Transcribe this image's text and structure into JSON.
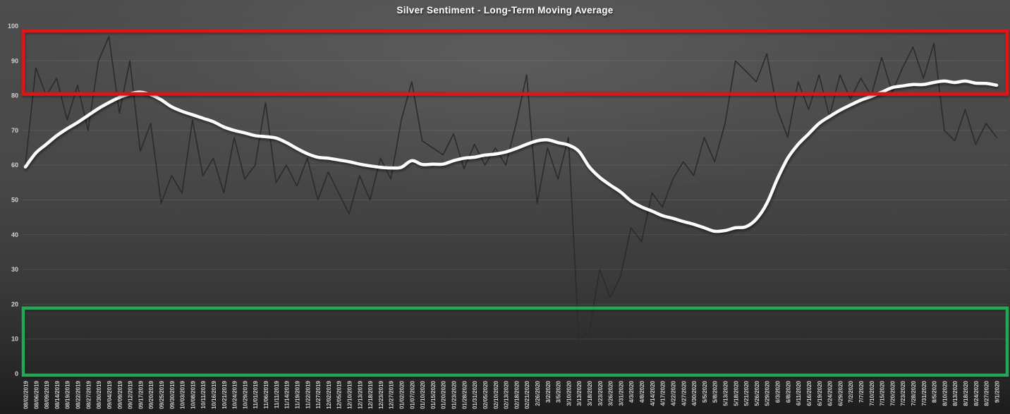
{
  "chart": {
    "title": "Silver Sentiment - Long-Term Moving Average"
  },
  "chart_data": {
    "type": "line",
    "title": "Silver Sentiment - Long-Term Moving Average",
    "xlabel": "",
    "ylabel": "",
    "ylim": [
      0,
      100
    ],
    "y_ticks": [
      0,
      10,
      20,
      30,
      40,
      50,
      60,
      70,
      80,
      90,
      100
    ],
    "grid": true,
    "legend_position": "none",
    "x_labels": [
      "08/02/2019",
      "08/06/2019",
      "08/09/2019",
      "08/14/2019",
      "08/19/2019",
      "08/22/2019",
      "08/27/2019",
      "08/30/2019",
      "09/04/2019",
      "09/09/2019",
      "09/12/2019",
      "09/17/2019",
      "09/20/2019",
      "09/25/2019",
      "09/30/2019",
      "10/03/2019",
      "10/08/2019",
      "10/11/2019",
      "10/16/2019",
      "10/21/2019",
      "10/24/2019",
      "10/29/2019",
      "11/01/2019",
      "11/06/2019",
      "11/11/2019",
      "11/14/2019",
      "11/19/2019",
      "11/22/2019",
      "11/27/2019",
      "12/02/2019",
      "12/05/2019",
      "12/10/2019",
      "12/13/2019",
      "12/18/2019",
      "12/23/2019",
      "12/27/2019",
      "01/02/2020",
      "01/07/2020",
      "01/10/2020",
      "01/15/2020",
      "01/20/2020",
      "01/23/2020",
      "01/28/2020",
      "01/31/2020",
      "02/05/2020",
      "02/10/2020",
      "02/13/2020",
      "02/18/2020",
      "02/21/2020",
      "2/26/2020",
      "3/2/2020",
      "3/5/2020",
      "3/10/2020",
      "3/13/2020",
      "3/18/2020",
      "3/23/2020",
      "3/26/2020",
      "3/31/2020",
      "4/3/2020",
      "4/8/2020",
      "4/14/2020",
      "4/17/2020",
      "4/22/2020",
      "4/27/2020",
      "4/30/2020",
      "5/5/2020",
      "5/8/2020",
      "5/13/2020",
      "5/18/2020",
      "5/21/2020",
      "5/26/2020",
      "5/29/2020",
      "6/3/2020",
      "6/8/2020",
      "6/11/2020",
      "6/16/2020",
      "6/19/2020",
      "6/24/2020",
      "6/29/2020",
      "7/2/2020",
      "7/7/2020",
      "7/10/2020",
      "7/15/2020",
      "7/20/2020",
      "7/23/2020",
      "7/28/2020",
      "7/31/2020",
      "8/5/2020",
      "8/10/2020",
      "8/13/2020",
      "8/18/2020",
      "8/24/2020",
      "8/27/2020",
      "9/1/2020"
    ],
    "series": [
      {
        "name": "daily-sentiment",
        "color": "#2b2b2b",
        "stroke_width": 1.6,
        "smooth": false,
        "shadow": false,
        "values": [
          60,
          88,
          80,
          85,
          73,
          83,
          70,
          90,
          97,
          75,
          90,
          64,
          72,
          49,
          57,
          52,
          73,
          57,
          62,
          52,
          68,
          56,
          60,
          78,
          55,
          60,
          54,
          62,
          50,
          58,
          52,
          46,
          57,
          50,
          62,
          56,
          73,
          84,
          67,
          65,
          63,
          69,
          59,
          66,
          60,
          65,
          60,
          72,
          86,
          49,
          65,
          56,
          68,
          10,
          12,
          30,
          22,
          28,
          42,
          38,
          52,
          48,
          56,
          61,
          57,
          68,
          61,
          72,
          90,
          87,
          84,
          92,
          76,
          68,
          84,
          76,
          86,
          74,
          86,
          79,
          85,
          80,
          91,
          81,
          88,
          94,
          85,
          95,
          70,
          67,
          76,
          66,
          72,
          68
        ]
      },
      {
        "name": "long-term-moving-average",
        "color": "#fdfdfd",
        "stroke_width": 4.5,
        "smooth": true,
        "shadow": true,
        "values": [
          59.5,
          63.5,
          66,
          68.5,
          70.5,
          72.3,
          74.3,
          76.3,
          78,
          79.5,
          80.5,
          81,
          80.3,
          78.8,
          76.8,
          75.5,
          74.5,
          73.5,
          72.5,
          71,
          70,
          69.3,
          68.5,
          68.2,
          67.8,
          66.5,
          64.8,
          63.3,
          62.3,
          62,
          61.5,
          61,
          60.3,
          59.8,
          59.4,
          59.2,
          59.4,
          61.3,
          60.2,
          60.3,
          60.3,
          61.3,
          62,
          62.3,
          62.9,
          63.2,
          63.8,
          64.8,
          66,
          67,
          67.3,
          66.5,
          65.8,
          64,
          59.5,
          56.5,
          54.3,
          52.3,
          49.7,
          48,
          46.8,
          45.5,
          44.7,
          43.8,
          43,
          42,
          41,
          41.2,
          42,
          42.3,
          44.5,
          49,
          56,
          62,
          66,
          69,
          72,
          74,
          75.8,
          77.3,
          78.7,
          79.8,
          81,
          82.3,
          82.8,
          83.2,
          83.2,
          83.8,
          84.2,
          83.8,
          84.2,
          83.6,
          83.5,
          83
        ]
      }
    ],
    "zones": [
      {
        "name": "upper-red-zone",
        "color": "#dc1414",
        "value_from": 80.5,
        "value_to": 98.6,
        "stroke_width": 5
      },
      {
        "name": "lower-green-zone",
        "color": "#22a852",
        "value_from": -0.4,
        "value_to": 18.9,
        "stroke_width": 4.5
      }
    ],
    "colors": {
      "axis_label": "#d2d2d2",
      "x_label": "#cfcfcf",
      "gridline": "rgba(255,255,255,0.09)",
      "title": "#ffffff"
    }
  }
}
